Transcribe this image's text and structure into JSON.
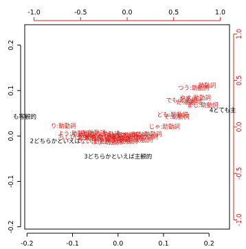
{
  "chart_data": {
    "type": "scatter",
    "title": "",
    "xlabel": "",
    "ylabel": "",
    "axes": {
      "bottom": {
        "range": [
          -0.205,
          0.245
        ],
        "ticks": [
          -0.2,
          -0.1,
          0.0,
          0.1,
          0.2
        ],
        "tick_labels": [
          "-0.2",
          "-0.1",
          "0.0",
          "0.1",
          "0.2"
        ],
        "color": "#000000"
      },
      "left": {
        "range": [
          -0.205,
          0.245
        ],
        "ticks": [
          -0.2,
          -0.1,
          0.0,
          0.1,
          0.2
        ],
        "tick_labels": [
          "-0.2",
          "-0.1",
          "0.0",
          "0.1",
          "0.2"
        ],
        "color": "#000000"
      },
      "top": {
        "range": [
          -1.1,
          1.1
        ],
        "ticks": [
          -1.0,
          -0.5,
          0.0,
          0.5,
          1.0
        ],
        "tick_labels": [
          "-1.0",
          "-0.5",
          "0.0",
          "0.5",
          "1.0"
        ],
        "color": "#e0201a"
      },
      "right": {
        "range": [
          -1.1,
          1.1
        ],
        "ticks": [
          -1.0,
          -0.5,
          0.0,
          0.5,
          1.0
        ],
        "tick_labels": [
          "-1.0",
          "-0.5",
          "0.0",
          "0.5",
          "1.0"
        ],
        "color": "#e0201a"
      }
    },
    "grid": false,
    "legend": "none",
    "series": [
      {
        "role": "row-points",
        "axes": "bottom-left",
        "color": "#000000",
        "points": [
          {
            "label": "も客観的",
            "x": -0.205,
            "y": 0.043
          },
          {
            "label": "2どちらかといえば",
            "x": -0.138,
            "y": -0.011
          },
          {
            "label": "3どちらかといえば主観的",
            "x": 0.0,
            "y": -0.045
          },
          {
            "label": "4とても主",
            "x": 0.23,
            "y": 0.057
          }
        ]
      },
      {
        "role": "column-points",
        "axes": "bottom-left",
        "color": "#e0201a",
        "points": [
          {
            "label": "り:助動詞",
            "x": -0.12,
            "y": 0.022
          },
          {
            "label": "つう:助動詞",
            "x": 0.166,
            "y": 0.106
          },
          {
            "label": "助動詞",
            "x": 0.196,
            "y": 0.111
          },
          {
            "label": "でも:助動詞",
            "x": 0.14,
            "y": 0.079
          },
          {
            "label": "だ:助動詞",
            "x": 0.156,
            "y": 0.074
          },
          {
            "label": "ども:助動詞",
            "x": 0.12,
            "y": 0.047
          },
          {
            "label": "ぞ:助動詞",
            "x": 0.129,
            "y": 0.043
          },
          {
            "label": "じゃ:助動詞",
            "x": 0.102,
            "y": 0.021
          },
          {
            "label": "ませ:助動詞",
            "x": 0.054,
            "y": -0.002
          },
          {
            "label": "よう:助動詞",
            "x": -0.098,
            "y": 0.006
          },
          {
            "label": "らしい:助動詞",
            "x": -0.09,
            "y": -0.003
          },
          {
            "label": "う:助動詞",
            "x": -0.076,
            "y": 0.003
          },
          {
            "label": "た:助動詞",
            "x": -0.062,
            "y": -0.004
          },
          {
            "label": "ない:助動詞",
            "x": -0.05,
            "y": -0.012
          },
          {
            "label": "ます:助動詞",
            "x": -0.04,
            "y": -0.002
          },
          {
            "label": "れる:助動詞",
            "x": -0.03,
            "y": 0.004
          },
          {
            "label": "せる:助動詞",
            "x": -0.02,
            "y": -0.006
          },
          {
            "label": "たい:助動詞",
            "x": -0.01,
            "y": -0.001
          },
          {
            "label": "ぬ:助動詞",
            "x": 0.0,
            "y": -0.008
          },
          {
            "label": "まい:助動詞",
            "x": 0.008,
            "y": 0.002
          },
          {
            "label": "そう:助動詞",
            "x": 0.018,
            "y": -0.005
          },
          {
            "label": "です:助動詞",
            "x": 0.03,
            "y": 0.003
          },
          {
            "label": "べし:助動詞",
            "x": 0.042,
            "y": -0.009
          },
          {
            "label": "き:助動詞",
            "x": -0.055,
            "y": 0.007
          },
          {
            "label": "けり:助動詞",
            "x": -0.025,
            "y": -0.013
          },
          {
            "label": "む:助動詞",
            "x": 0.015,
            "y": -0.012
          },
          {
            "label": "らる:助動詞",
            "x": 0.062,
            "y": 0.004
          },
          {
            "label": "やす:助動詞",
            "x": 0.17,
            "y": 0.084
          },
          {
            "label": "まし:助動詞",
            "x": 0.186,
            "y": 0.068
          }
        ]
      }
    ]
  }
}
